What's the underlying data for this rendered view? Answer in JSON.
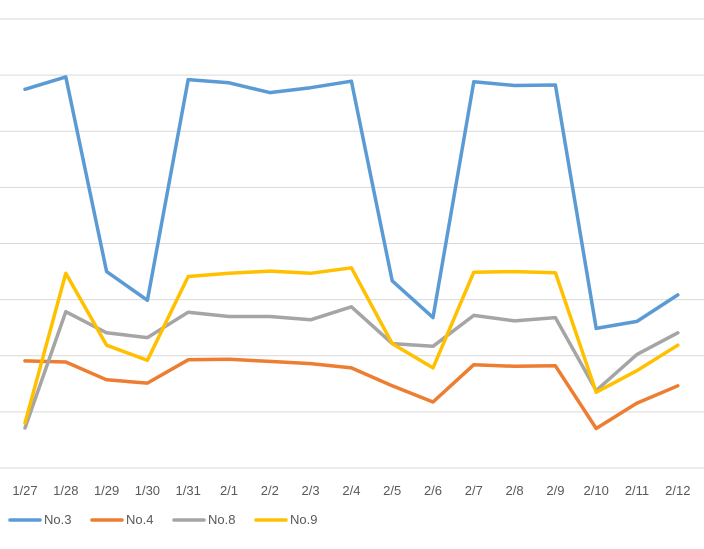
{
  "chart_data": {
    "type": "line",
    "title": "",
    "xlabel": "",
    "ylabel": "",
    "categories": [
      "1/27",
      "1/28",
      "1/29",
      "1/30",
      "1/31",
      "2/1",
      "2/2",
      "2/3",
      "2/4",
      "2/5",
      "2/6",
      "2/7",
      "2/8",
      "2/9",
      "2/10",
      "2/11",
      "2/12"
    ],
    "ylim": [
      0,
      8.3
    ],
    "gridlines": 8,
    "grid": true,
    "legend_position": "bottom",
    "series": [
      {
        "name": "No.3",
        "color": "#5B9BD5",
        "values": [
          7.0,
          7.23,
          3.63,
          3.1,
          7.18,
          7.12,
          6.94,
          7.03,
          7.15,
          3.46,
          2.78,
          7.14,
          7.07,
          7.08,
          2.58,
          2.71,
          3.2
        ]
      },
      {
        "name": "No.4",
        "color": "#ED7D31",
        "values": [
          1.98,
          1.96,
          1.63,
          1.57,
          2.0,
          2.01,
          1.97,
          1.93,
          1.85,
          1.52,
          1.22,
          1.91,
          1.88,
          1.89,
          0.73,
          1.2,
          1.52
        ]
      },
      {
        "name": "No.8",
        "color": "#A5A5A5",
        "values": [
          0.74,
          2.89,
          2.5,
          2.41,
          2.88,
          2.8,
          2.8,
          2.74,
          2.98,
          2.3,
          2.25,
          2.82,
          2.72,
          2.78,
          1.43,
          2.1,
          2.5
        ]
      },
      {
        "name": "No.9",
        "color": "#FFC000",
        "values": [
          0.83,
          3.6,
          2.27,
          1.99,
          3.54,
          3.6,
          3.64,
          3.6,
          3.7,
          2.3,
          1.85,
          3.62,
          3.63,
          3.61,
          1.4,
          1.8,
          2.27
        ]
      }
    ]
  }
}
